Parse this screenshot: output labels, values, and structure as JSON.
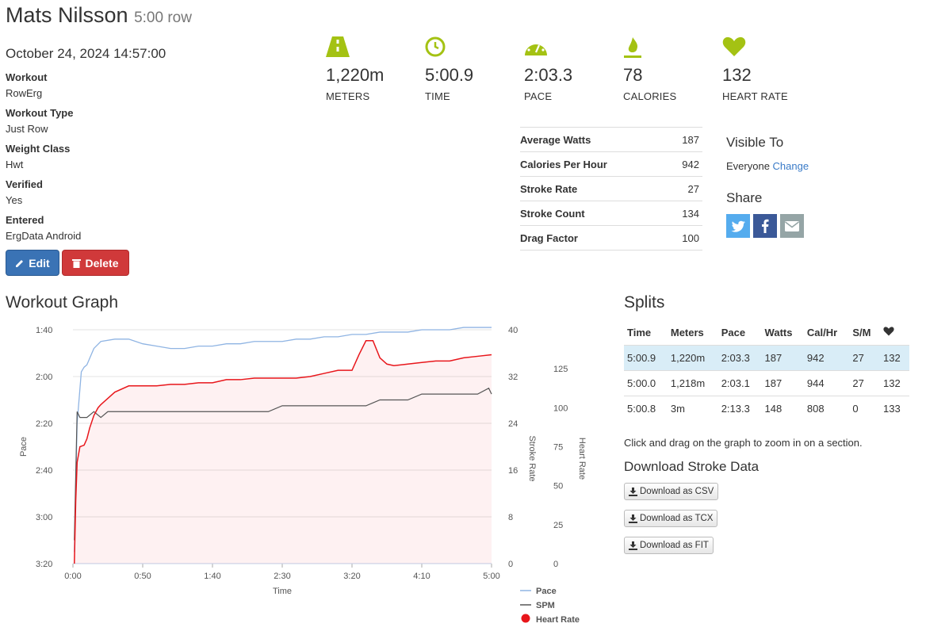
{
  "header": {
    "name": "Mats Nilsson",
    "subtitle": "5:00 row"
  },
  "date": "October 24, 2024 14:57:00",
  "info": [
    {
      "label": "Workout",
      "value": "RowErg"
    },
    {
      "label": "Workout Type",
      "value": "Just Row"
    },
    {
      "label": "Weight Class",
      "value": "Hwt"
    },
    {
      "label": "Verified",
      "value": "Yes"
    },
    {
      "label": "Entered",
      "value": "ErgData Android"
    }
  ],
  "buttons": {
    "edit": "Edit",
    "delete": "Delete"
  },
  "stats": [
    {
      "icon": "road-icon",
      "value": "1,220m",
      "label": "METERS"
    },
    {
      "icon": "clock-icon",
      "value": "5:00.9",
      "label": "TIME"
    },
    {
      "icon": "speedometer-icon",
      "value": "2:03.3",
      "label": "PACE"
    },
    {
      "icon": "fire-icon",
      "value": "78",
      "label": "CALORIES"
    },
    {
      "icon": "heart-icon",
      "value": "132",
      "label": "HEART RATE"
    }
  ],
  "metrics": [
    {
      "label": "Average Watts",
      "value": "187"
    },
    {
      "label": "Calories Per Hour",
      "value": "942"
    },
    {
      "label": "Stroke Rate",
      "value": "27"
    },
    {
      "label": "Stroke Count",
      "value": "134"
    },
    {
      "label": "Drag Factor",
      "value": "100"
    }
  ],
  "visibility": {
    "heading": "Visible To",
    "value": "Everyone",
    "change": "Change"
  },
  "share": {
    "heading": "Share",
    "colors": {
      "twitter": "#55acee",
      "facebook": "#3b5998",
      "email": "#95a5a6"
    }
  },
  "graph_heading": "Workout Graph",
  "splits": {
    "heading": "Splits",
    "headers": [
      "Time",
      "Meters",
      "Pace",
      "Watts",
      "Cal/Hr",
      "S/M"
    ],
    "rows": [
      [
        "5:00.9",
        "1,220m",
        "2:03.3",
        "187",
        "942",
        "27",
        "132"
      ],
      [
        "5:00.0",
        "1,218m",
        "2:03.1",
        "187",
        "944",
        "27",
        "132"
      ],
      [
        "5:00.8",
        "3m",
        "2:13.3",
        "148",
        "808",
        "0",
        "133"
      ]
    ]
  },
  "hint": "Click and drag on the graph to zoom in on a section.",
  "download": {
    "heading": "Download Stroke Data",
    "csv": "Download as CSV",
    "tcx": "Download as TCX",
    "fit": "Download as FIT"
  },
  "accent_color": "#a4c213",
  "chart_data": {
    "type": "line",
    "xlabel": "Time",
    "x_ticks": [
      "0:00",
      "0:50",
      "1:40",
      "2:30",
      "3:20",
      "4:10",
      "5:00"
    ],
    "xlim": [
      0,
      300
    ],
    "pace_axis": {
      "label": "Pace",
      "ticks": [
        "1:40",
        "2:00",
        "2:20",
        "2:40",
        "3:00",
        "3:20"
      ],
      "range_seconds": [
        100,
        200
      ]
    },
    "spm_axis": {
      "label": "Stroke Rate",
      "ticks": [
        "0",
        "8",
        "16",
        "24",
        "32",
        "40"
      ],
      "range": [
        0,
        40
      ]
    },
    "hr_axis": {
      "label": "Heart Rate",
      "ticks": [
        "0",
        "25",
        "50",
        "75",
        "100",
        "125"
      ],
      "range": [
        0,
        150
      ]
    },
    "legend": [
      "Pace",
      "SPM",
      "Heart Rate"
    ],
    "colors": {
      "pace": "#8fb4e3",
      "spm": "#555555",
      "hr": "#e8161b"
    },
    "series": [
      {
        "name": "Pace",
        "x": [
          1,
          3,
          6,
          8,
          10,
          15,
          20,
          30,
          40,
          50,
          60,
          70,
          80,
          90,
          100,
          110,
          120,
          130,
          140,
          150,
          160,
          170,
          180,
          190,
          200,
          210,
          220,
          230,
          240,
          250,
          260,
          270,
          280,
          290,
          300
        ],
        "y": [
          195,
          140,
          118,
          116,
          115,
          108,
          105,
          104,
          104,
          106,
          107,
          108,
          108,
          107,
          107,
          106,
          106,
          105,
          105,
          105,
          104,
          104,
          103,
          103,
          102,
          102,
          101,
          101,
          101,
          100,
          100,
          100,
          99,
          99,
          99
        ]
      },
      {
        "name": "SPM",
        "x": [
          1,
          3,
          5,
          10,
          15,
          20,
          25,
          30,
          40,
          50,
          60,
          70,
          80,
          90,
          100,
          110,
          120,
          130,
          140,
          150,
          160,
          170,
          180,
          190,
          200,
          210,
          220,
          230,
          240,
          250,
          260,
          270,
          280,
          290,
          298,
          300
        ],
        "y": [
          4,
          26,
          25,
          25,
          26,
          25,
          26,
          26,
          26,
          26,
          26,
          26,
          26,
          26,
          26,
          26,
          26,
          26,
          26,
          27,
          27,
          27,
          27,
          27,
          27,
          27,
          28,
          28,
          28,
          29,
          29,
          29,
          29,
          29,
          30,
          29
        ]
      },
      {
        "name": "Heart Rate",
        "x": [
          1,
          2,
          3,
          5,
          8,
          10,
          12,
          15,
          18,
          20,
          25,
          30,
          40,
          50,
          60,
          70,
          80,
          90,
          100,
          110,
          120,
          130,
          140,
          150,
          160,
          170,
          180,
          190,
          200,
          205,
          210,
          215,
          220,
          225,
          230,
          240,
          250,
          260,
          270,
          280,
          290,
          300
        ],
        "y": [
          0,
          40,
          65,
          75,
          76,
          80,
          87,
          95,
          100,
          102,
          106,
          110,
          114,
          114,
          114,
          115,
          115,
          116,
          116,
          118,
          118,
          119,
          119,
          119,
          119,
          120,
          122,
          124,
          124,
          134,
          143,
          143,
          132,
          128,
          127,
          128,
          129,
          130,
          130,
          132,
          133,
          134
        ]
      }
    ]
  }
}
